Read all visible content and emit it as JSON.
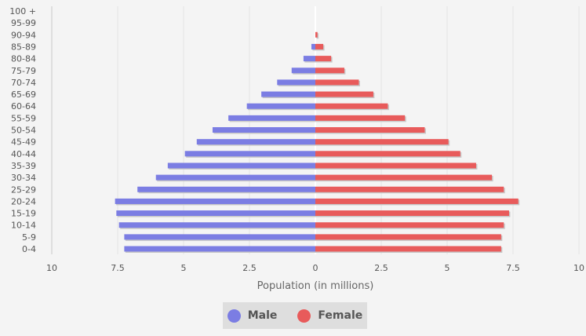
{
  "chart_data": {
    "type": "bar",
    "orientation": "horizontal",
    "title": "",
    "xlabel": "Population (in millions)",
    "ylabel": "",
    "xlim": [
      -10,
      10
    ],
    "grid": true,
    "legend_placement": "bottom-center",
    "x_ticks": [
      -10,
      -7.5,
      -5,
      -2.5,
      0,
      2.5,
      5,
      7.5,
      10
    ],
    "x_tick_labels": [
      "10",
      "7.5",
      "5",
      "2.5",
      "0",
      "2.5",
      "5",
      "7.5",
      "10"
    ],
    "categories": [
      "100 +",
      "95-99",
      "90-94",
      "85-89",
      "80-84",
      "75-79",
      "70-74",
      "65-69",
      "60-64",
      "55-59",
      "50-54",
      "45-49",
      "40-44",
      "35-39",
      "30-34",
      "25-29",
      "20-24",
      "15-19",
      "10-14",
      "5-9",
      "0-4"
    ],
    "series": [
      {
        "name": "Male",
        "color": "#7b7de3",
        "values": [
          0.0,
          0.0,
          0.0,
          0.15,
          0.45,
          0.9,
          1.45,
          2.05,
          2.6,
          3.3,
          3.9,
          4.5,
          4.95,
          5.6,
          6.05,
          6.75,
          7.6,
          7.55,
          7.45,
          7.25,
          7.25
        ]
      },
      {
        "name": "Female",
        "color": "#e85b5b",
        "values": [
          0.0,
          0.0,
          0.08,
          0.3,
          0.6,
          1.1,
          1.65,
          2.2,
          2.75,
          3.4,
          4.15,
          5.05,
          5.5,
          6.1,
          6.7,
          7.15,
          7.7,
          7.35,
          7.15,
          7.05,
          7.05
        ]
      }
    ]
  }
}
